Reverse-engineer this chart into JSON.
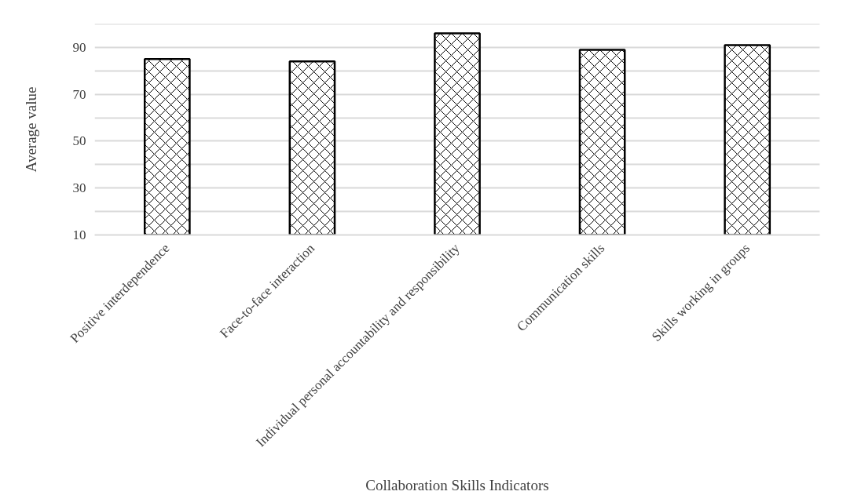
{
  "chart_data": {
    "type": "bar",
    "xlabel": "Collaboration Skills Indicators",
    "ylabel": "Average value",
    "categories": [
      "Positive interdependence",
      "Face-to-face interaction",
      "Individual personal accountability and responsibility",
      "Communication skills",
      "Skills working in groups"
    ],
    "values": [
      85,
      84,
      96,
      89,
      91
    ],
    "color": "#ffffff",
    "ylim": [
      10,
      100
    ],
    "yticks": [
      10,
      {
        "value": 20,
        "label": null
      },
      30,
      {
        "value": 40,
        "label": null
      },
      50,
      {
        "value": 60,
        "label": null
      },
      70,
      {
        "value": 80,
        "label": null
      },
      90,
      {
        "value": 100,
        "label": null
      }
    ],
    "grid": "y"
  }
}
